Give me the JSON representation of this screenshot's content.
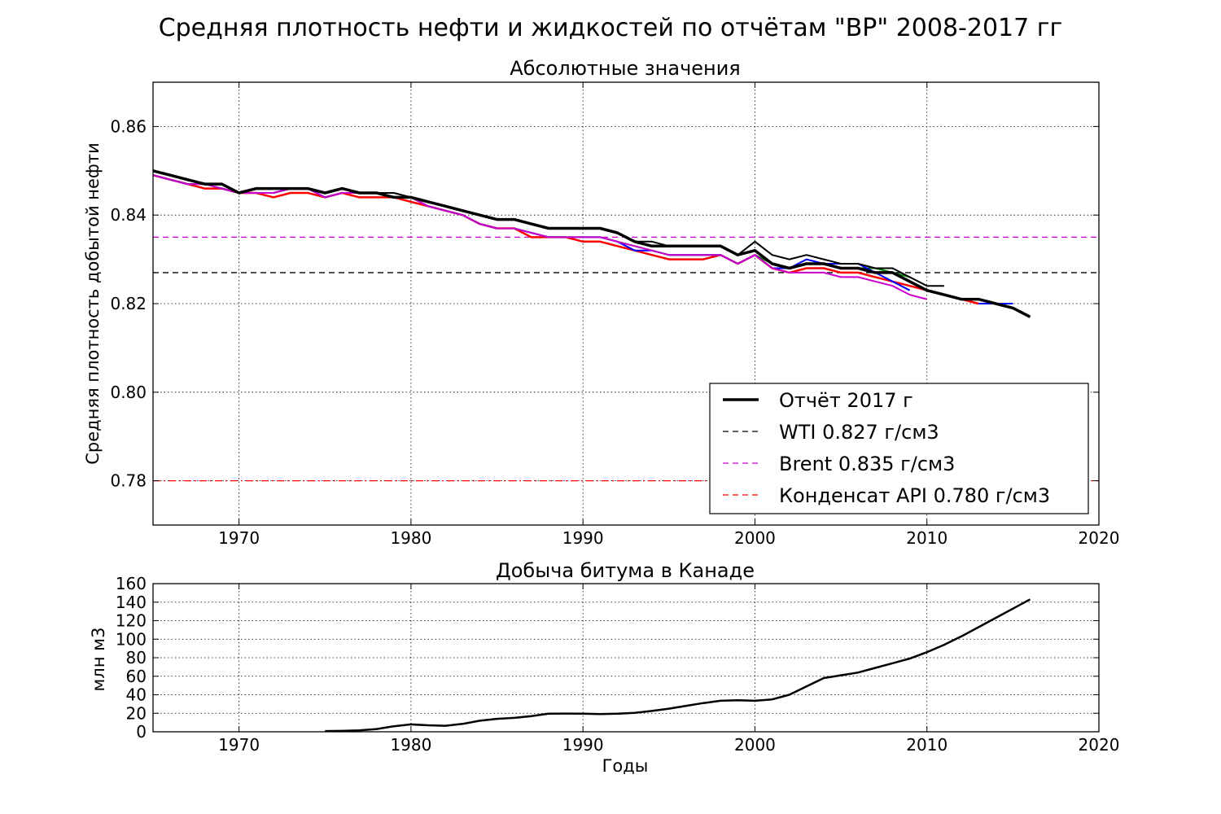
{
  "suptitle": "Средняя плотность нефти и жидкостей по отчётам \"BP\" 2008-2017 гг",
  "chart_data": [
    {
      "type": "line",
      "title": "Абсолютные значения",
      "xlabel": "",
      "ylabel": "Средняя плотность добытой нефти",
      "xlim": [
        1965,
        2020
      ],
      "ylim": [
        0.77,
        0.87
      ],
      "xticks": [
        "1970",
        "1980",
        "1990",
        "2000",
        "2010",
        "2020"
      ],
      "yticks": [
        "0.78",
        "0.80",
        "0.82",
        "0.84",
        "0.86"
      ],
      "grid": true,
      "legend_position": "lower-right",
      "legend": [
        {
          "label": "Отчёт 2017 г",
          "color": "#000000",
          "style": "thick-solid"
        },
        {
          "label": "WTI 0.827 г/см3",
          "color": "#000000",
          "style": "dashed"
        },
        {
          "label": "Brent 0.835 г/см3",
          "color": "#cc00cc",
          "style": "dashed"
        },
        {
          "label": "Конденсат API 0.780 г/см3",
          "color": "#ff0000",
          "style": "dashed"
        }
      ],
      "reference_lines": [
        {
          "y": 0.827,
          "color": "#000000",
          "style": "dashed"
        },
        {
          "y": 0.835,
          "color": "#cc00cc",
          "style": "dashed"
        },
        {
          "y": 0.78,
          "color": "#ff0000",
          "style": "dashdot"
        }
      ],
      "series": [
        {
          "color": "#ff0000",
          "width": 2.5,
          "x": [
            1965,
            1966,
            1967,
            1968,
            1969,
            1970,
            1971,
            1972,
            1973,
            1974,
            1975,
            1976,
            1977,
            1978,
            1979,
            1980,
            1981,
            1982,
            1983,
            1984,
            1985,
            1986,
            1987,
            1988,
            1989,
            1990,
            1991,
            1992,
            1993,
            1994,
            1995,
            1996,
            1997,
            1998,
            1999,
            2000,
            2001,
            2002,
            2003,
            2004,
            2005,
            2006,
            2007,
            2008,
            2009,
            2010,
            2011,
            2012,
            2013
          ],
          "y": [
            0.849,
            0.848,
            0.847,
            0.846,
            0.846,
            0.845,
            0.845,
            0.844,
            0.845,
            0.845,
            0.844,
            0.845,
            0.844,
            0.844,
            0.844,
            0.843,
            0.842,
            0.841,
            0.84,
            0.838,
            0.837,
            0.837,
            0.835,
            0.835,
            0.835,
            0.834,
            0.834,
            0.833,
            0.832,
            0.831,
            0.83,
            0.83,
            0.83,
            0.831,
            0.829,
            0.831,
            0.828,
            0.827,
            0.828,
            0.828,
            0.827,
            0.827,
            0.826,
            0.825,
            0.824,
            0.823,
            0.822,
            0.821,
            0.82
          ]
        },
        {
          "color": "#008000",
          "width": 2,
          "x": [
            1965,
            1966,
            1967,
            1968,
            1969,
            1970,
            1971,
            1972,
            1973,
            1974,
            1975,
            1976,
            1977,
            1978,
            1979,
            1980,
            1981,
            1982,
            1983,
            1984,
            1985,
            1986,
            1987,
            1988,
            1989,
            1990,
            1991,
            1992,
            1993,
            1994,
            1995,
            1996,
            1997,
            1998,
            1999,
            2000,
            2001,
            2002,
            2003,
            2004,
            2005,
            2006,
            2007,
            2008,
            2009
          ],
          "y": [
            0.849,
            0.848,
            0.847,
            0.847,
            0.846,
            0.845,
            0.845,
            0.845,
            0.846,
            0.846,
            0.844,
            0.845,
            0.845,
            0.845,
            0.844,
            0.844,
            0.842,
            0.841,
            0.84,
            0.838,
            0.837,
            0.837,
            0.836,
            0.835,
            0.835,
            0.835,
            0.835,
            0.834,
            0.833,
            0.832,
            0.831,
            0.831,
            0.831,
            0.831,
            0.829,
            0.831,
            0.829,
            0.828,
            0.829,
            0.829,
            0.828,
            0.828,
            0.828,
            0.827,
            0.826
          ]
        },
        {
          "color": "#0000ff",
          "width": 2,
          "x": [
            1965,
            1966,
            1967,
            1968,
            1969,
            1970,
            1971,
            1972,
            1973,
            1974,
            1975,
            1976,
            1977,
            1978,
            1979,
            1980,
            1981,
            1982,
            1983,
            1984,
            1985,
            1986,
            1987,
            1988,
            1989,
            1990,
            1991,
            1992,
            1993,
            1994,
            1995,
            1996,
            1997,
            1998,
            1999,
            2000,
            2001,
            2002,
            2003,
            2004,
            2005,
            2006,
            2007,
            2008,
            2009,
            2013,
            2014,
            2015
          ],
          "y": [
            0.849,
            0.848,
            0.847,
            0.847,
            0.846,
            0.845,
            0.845,
            0.845,
            0.846,
            0.846,
            0.844,
            0.845,
            0.845,
            0.845,
            0.844,
            0.844,
            0.842,
            0.841,
            0.84,
            0.838,
            0.837,
            0.837,
            0.836,
            0.835,
            0.835,
            0.835,
            0.835,
            0.834,
            0.832,
            0.832,
            0.831,
            0.831,
            0.831,
            0.831,
            0.829,
            0.831,
            0.828,
            0.828,
            0.83,
            0.829,
            0.829,
            0.829,
            0.827,
            0.825,
            0.823,
            0.82,
            0.82,
            0.82
          ]
        },
        {
          "color": "#cc00cc",
          "width": 2,
          "x": [
            1965,
            1966,
            1967,
            1968,
            1969,
            1970,
            1971,
            1972,
            1973,
            1974,
            1975,
            1976,
            1977,
            1978,
            1979,
            1980,
            1981,
            1982,
            1983,
            1984,
            1985,
            1986,
            1987,
            1988,
            1989,
            1990,
            1991,
            1992,
            1993,
            1994,
            1995,
            1996,
            1997,
            1998,
            1999,
            2000,
            2001,
            2002,
            2003,
            2004,
            2005,
            2006,
            2007,
            2008,
            2009,
            2010
          ],
          "y": [
            0.849,
            0.848,
            0.847,
            0.847,
            0.846,
            0.845,
            0.845,
            0.845,
            0.846,
            0.846,
            0.844,
            0.845,
            0.845,
            0.845,
            0.844,
            0.844,
            0.842,
            0.841,
            0.84,
            0.838,
            0.837,
            0.837,
            0.836,
            0.835,
            0.835,
            0.835,
            0.835,
            0.834,
            0.833,
            0.832,
            0.831,
            0.831,
            0.831,
            0.831,
            0.829,
            0.831,
            0.828,
            0.827,
            0.827,
            0.827,
            0.826,
            0.826,
            0.825,
            0.824,
            0.822,
            0.821
          ]
        },
        {
          "color": "#000000",
          "width": 2,
          "x": [
            1965,
            1966,
            1967,
            1968,
            1969,
            1970,
            1971,
            1972,
            1973,
            1974,
            1975,
            1976,
            1977,
            1978,
            1979,
            1980,
            1981,
            1982,
            1983,
            1984,
            1985,
            1986,
            1987,
            1988,
            1989,
            1990,
            1991,
            1992,
            1993,
            1994,
            1995,
            1996,
            1997,
            1998,
            1999,
            2000,
            2001,
            2002,
            2003,
            2004,
            2005,
            2006,
            2007,
            2008,
            2009,
            2010,
            2011
          ],
          "y": [
            0.85,
            0.849,
            0.848,
            0.847,
            0.847,
            0.845,
            0.846,
            0.846,
            0.846,
            0.846,
            0.845,
            0.846,
            0.845,
            0.845,
            0.845,
            0.844,
            0.843,
            0.842,
            0.841,
            0.84,
            0.839,
            0.839,
            0.838,
            0.837,
            0.837,
            0.837,
            0.837,
            0.836,
            0.834,
            0.834,
            0.833,
            0.833,
            0.833,
            0.833,
            0.831,
            0.834,
            0.831,
            0.83,
            0.831,
            0.83,
            0.829,
            0.829,
            0.828,
            0.828,
            0.826,
            0.824,
            0.824
          ]
        },
        {
          "name": "Отчёт 2017 г",
          "color": "#000000",
          "width": 3.5,
          "x": [
            1965,
            1966,
            1967,
            1968,
            1969,
            1970,
            1971,
            1972,
            1973,
            1974,
            1975,
            1976,
            1977,
            1978,
            1979,
            1980,
            1981,
            1982,
            1983,
            1984,
            1985,
            1986,
            1987,
            1988,
            1989,
            1990,
            1991,
            1992,
            1993,
            1994,
            1995,
            1996,
            1997,
            1998,
            1999,
            2000,
            2001,
            2002,
            2003,
            2004,
            2005,
            2006,
            2007,
            2008,
            2009,
            2010,
            2011,
            2012,
            2013,
            2014,
            2015,
            2016
          ],
          "y": [
            0.85,
            0.849,
            0.848,
            0.847,
            0.847,
            0.845,
            0.846,
            0.846,
            0.846,
            0.846,
            0.845,
            0.846,
            0.845,
            0.845,
            0.844,
            0.844,
            0.843,
            0.842,
            0.841,
            0.84,
            0.839,
            0.839,
            0.838,
            0.837,
            0.837,
            0.837,
            0.837,
            0.836,
            0.834,
            0.833,
            0.833,
            0.833,
            0.833,
            0.833,
            0.831,
            0.832,
            0.829,
            0.828,
            0.829,
            0.829,
            0.828,
            0.828,
            0.827,
            0.827,
            0.825,
            0.823,
            0.822,
            0.821,
            0.821,
            0.82,
            0.819,
            0.817
          ]
        }
      ]
    },
    {
      "type": "line",
      "title": "Добыча битума в Канаде",
      "xlabel": "Годы",
      "ylabel": "млн м3",
      "xlim": [
        1965,
        2020
      ],
      "ylim": [
        0,
        160
      ],
      "xticks": [
        "1970",
        "1980",
        "1990",
        "2000",
        "2010",
        "2020"
      ],
      "yticks": [
        "0",
        "20",
        "40",
        "60",
        "80",
        "100",
        "120",
        "140",
        "160"
      ],
      "grid": true,
      "series": [
        {
          "color": "#000000",
          "width": 2.5,
          "x": [
            1965,
            1967,
            1969,
            1971,
            1973,
            1975,
            1976,
            1977,
            1978,
            1979,
            1980,
            1981,
            1982,
            1983,
            1984,
            1985,
            1986,
            1987,
            1988,
            1989,
            1990,
            1991,
            1992,
            1993,
            1994,
            1995,
            1996,
            1997,
            1998,
            1999,
            2000,
            2001,
            2002,
            2003,
            2004,
            2005,
            2006,
            2007,
            2008,
            2009,
            2010,
            2011,
            2012,
            2013,
            2014,
            2015,
            2016
          ],
          "y": [
            0,
            0,
            0.2,
            0.3,
            0.5,
            0.8,
            1,
            1.5,
            3,
            6,
            8,
            7,
            6.5,
            8.5,
            12,
            14,
            15,
            17,
            19.5,
            19.7,
            19.5,
            19.2,
            19.5,
            20.5,
            22.5,
            25,
            28,
            31,
            33.5,
            34,
            33.5,
            35,
            40,
            49,
            58,
            61,
            64,
            69,
            74,
            79,
            86,
            94,
            103,
            113,
            123,
            133,
            143
          ]
        }
      ]
    }
  ]
}
